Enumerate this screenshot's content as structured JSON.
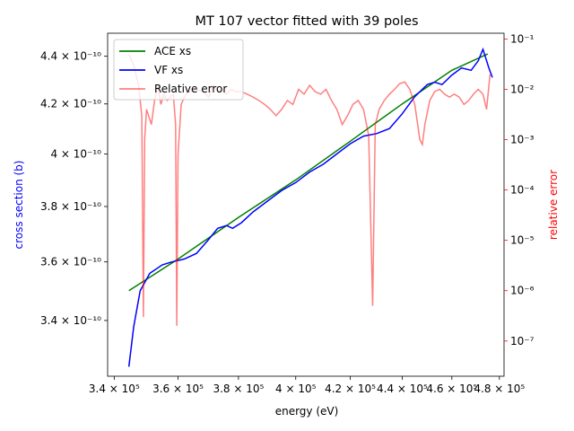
{
  "chart_data": {
    "type": "line",
    "title": "MT 107 vector fitted with 39 poles",
    "xlabel": "energy (eV)",
    "ylabel_left": "cross section (b)",
    "ylabel_right": "relative error",
    "x_scale": "log",
    "y_left_scale": "log",
    "y_right_scale": "log",
    "xlim": [
      338000,
      482000
    ],
    "ylim_left": [
      3.22e-10,
      4.5e-10
    ],
    "ylim_right": [
      2e-08,
      0.13
    ],
    "x_ticks": [
      {
        "value": 340000,
        "label": "3.4 × 10⁵"
      },
      {
        "value": 360000,
        "label": "3.6 × 10⁵"
      },
      {
        "value": 380000,
        "label": "3.8 × 10⁵"
      },
      {
        "value": 400000,
        "label": "4 × 10⁵"
      },
      {
        "value": 420000,
        "label": "4.2 × 10⁵"
      },
      {
        "value": 440000,
        "label": "4.4 × 10⁵"
      },
      {
        "value": 460000,
        "label": "4.6 × 10⁵"
      },
      {
        "value": 480000,
        "label": "4.8 × 10⁵"
      }
    ],
    "y_left_ticks": [
      {
        "value": 3.4e-10,
        "label": "3.4 × 10⁻¹⁰"
      },
      {
        "value": 3.6e-10,
        "label": "3.6 × 10⁻¹⁰"
      },
      {
        "value": 3.8e-10,
        "label": "3.8 × 10⁻¹⁰"
      },
      {
        "value": 4e-10,
        "label": "4 × 10⁻¹⁰"
      },
      {
        "value": 4.2e-10,
        "label": "4.2 × 10⁻¹⁰"
      },
      {
        "value": 4.4e-10,
        "label": "4.4 × 10⁻¹⁰"
      }
    ],
    "y_right_ticks": [
      {
        "value": 1e-07,
        "label": "10⁻⁷"
      },
      {
        "value": 1e-06,
        "label": "10⁻⁶"
      },
      {
        "value": 1e-05,
        "label": "10⁻⁵"
      },
      {
        "value": 0.0001,
        "label": "10⁻⁴"
      },
      {
        "value": 0.001,
        "label": "10⁻³"
      },
      {
        "value": 0.01,
        "label": "10⁻²"
      },
      {
        "value": 0.1,
        "label": "10⁻¹"
      }
    ],
    "legend_position": "top-left",
    "series": [
      {
        "name": "ACE xs",
        "color": "#008000",
        "axis": "left",
        "points": [
          [
            344500,
            3.5e-10
          ],
          [
            360000,
            3.61e-10
          ],
          [
            380000,
            3.76e-10
          ],
          [
            400000,
            3.9e-10
          ],
          [
            420000,
            4.05e-10
          ],
          [
            440000,
            4.2e-10
          ],
          [
            460000,
            4.34e-10
          ],
          [
            475000,
            4.41e-10
          ]
        ]
      },
      {
        "name": "VF xs",
        "color": "#0000ff",
        "axis": "left",
        "points": [
          [
            344500,
            3.25e-10
          ],
          [
            346000,
            3.38e-10
          ],
          [
            348000,
            3.5e-10
          ],
          [
            351000,
            3.56e-10
          ],
          [
            355000,
            3.59e-10
          ],
          [
            358000,
            3.6e-10
          ],
          [
            362000,
            3.61e-10
          ],
          [
            366000,
            3.63e-10
          ],
          [
            370000,
            3.68e-10
          ],
          [
            373000,
            3.72e-10
          ],
          [
            376000,
            3.73e-10
          ],
          [
            378000,
            3.72e-10
          ],
          [
            381000,
            3.74e-10
          ],
          [
            385000,
            3.78e-10
          ],
          [
            390000,
            3.82e-10
          ],
          [
            395000,
            3.86e-10
          ],
          [
            400000,
            3.89e-10
          ],
          [
            405000,
            3.93e-10
          ],
          [
            410000,
            3.96e-10
          ],
          [
            415000,
            4e-10
          ],
          [
            420000,
            4.04e-10
          ],
          [
            425000,
            4.07e-10
          ],
          [
            430000,
            4.08e-10
          ],
          [
            435000,
            4.1e-10
          ],
          [
            440000,
            4.16e-10
          ],
          [
            445000,
            4.23e-10
          ],
          [
            450000,
            4.28e-10
          ],
          [
            453000,
            4.29e-10
          ],
          [
            456000,
            4.28e-10
          ],
          [
            460000,
            4.32e-10
          ],
          [
            464000,
            4.35e-10
          ],
          [
            468000,
            4.34e-10
          ],
          [
            471000,
            4.38e-10
          ],
          [
            473000,
            4.43e-10
          ],
          [
            475500,
            4.35e-10
          ],
          [
            477000,
            4.31e-10
          ]
        ]
      },
      {
        "name": "Relative error",
        "color": "#ff0000",
        "axis": "right",
        "points": [
          [
            344500,
            0.05
          ],
          [
            346000,
            0.03
          ],
          [
            347500,
            0.012
          ],
          [
            348500,
            0.003
          ],
          [
            349000,
            3e-07
          ],
          [
            349400,
            0.001
          ],
          [
            350000,
            0.004
          ],
          [
            351500,
            0.002
          ],
          [
            352500,
            0.006
          ],
          [
            353500,
            0.012
          ],
          [
            354500,
            0.005
          ],
          [
            355500,
            0.008
          ],
          [
            356500,
            0.006
          ],
          [
            357500,
            0.007
          ],
          [
            358500,
            0.008
          ],
          [
            359200,
            0.002
          ],
          [
            359600,
            2e-07
          ],
          [
            360000,
            0.0005
          ],
          [
            361000,
            0.005
          ],
          [
            362500,
            0.008
          ],
          [
            364000,
            0.009
          ],
          [
            366000,
            0.01
          ],
          [
            368000,
            0.009
          ],
          [
            370000,
            0.007
          ],
          [
            371500,
            0.012
          ],
          [
            373000,
            0.009
          ],
          [
            374500,
            0.01
          ],
          [
            376000,
            0.008
          ],
          [
            377500,
            0.01
          ],
          [
            379000,
            0.009
          ],
          [
            381000,
            0.009
          ],
          [
            383000,
            0.008
          ],
          [
            385000,
            0.007
          ],
          [
            387000,
            0.006
          ],
          [
            389000,
            0.005
          ],
          [
            391000,
            0.004
          ],
          [
            393000,
            0.003
          ],
          [
            395000,
            0.004
          ],
          [
            397000,
            0.006
          ],
          [
            399000,
            0.005
          ],
          [
            401000,
            0.01
          ],
          [
            403000,
            0.008
          ],
          [
            405000,
            0.012
          ],
          [
            407000,
            0.009
          ],
          [
            409000,
            0.008
          ],
          [
            411000,
            0.01
          ],
          [
            413000,
            0.006
          ],
          [
            415000,
            0.004
          ],
          [
            417000,
            0.002
          ],
          [
            419000,
            0.003
          ],
          [
            421000,
            0.005
          ],
          [
            423000,
            0.006
          ],
          [
            425000,
            0.004
          ],
          [
            427000,
            0.0012
          ],
          [
            428500,
            5e-07
          ],
          [
            429500,
            0.002
          ],
          [
            431000,
            0.004
          ],
          [
            433000,
            0.006
          ],
          [
            435000,
            0.008
          ],
          [
            437000,
            0.01
          ],
          [
            439000,
            0.013
          ],
          [
            441000,
            0.014
          ],
          [
            443000,
            0.01
          ],
          [
            445000,
            0.005
          ],
          [
            447000,
            0.001
          ],
          [
            448000,
            0.0008
          ],
          [
            449000,
            0.002
          ],
          [
            451000,
            0.006
          ],
          [
            453000,
            0.009
          ],
          [
            455000,
            0.01
          ],
          [
            457000,
            0.008
          ],
          [
            459000,
            0.007
          ],
          [
            461000,
            0.008
          ],
          [
            463000,
            0.007
          ],
          [
            465000,
            0.005
          ],
          [
            467000,
            0.006
          ],
          [
            469000,
            0.008
          ],
          [
            471000,
            0.01
          ],
          [
            473000,
            0.008
          ],
          [
            474500,
            0.004
          ],
          [
            476000,
            0.02
          ]
        ]
      }
    ]
  }
}
